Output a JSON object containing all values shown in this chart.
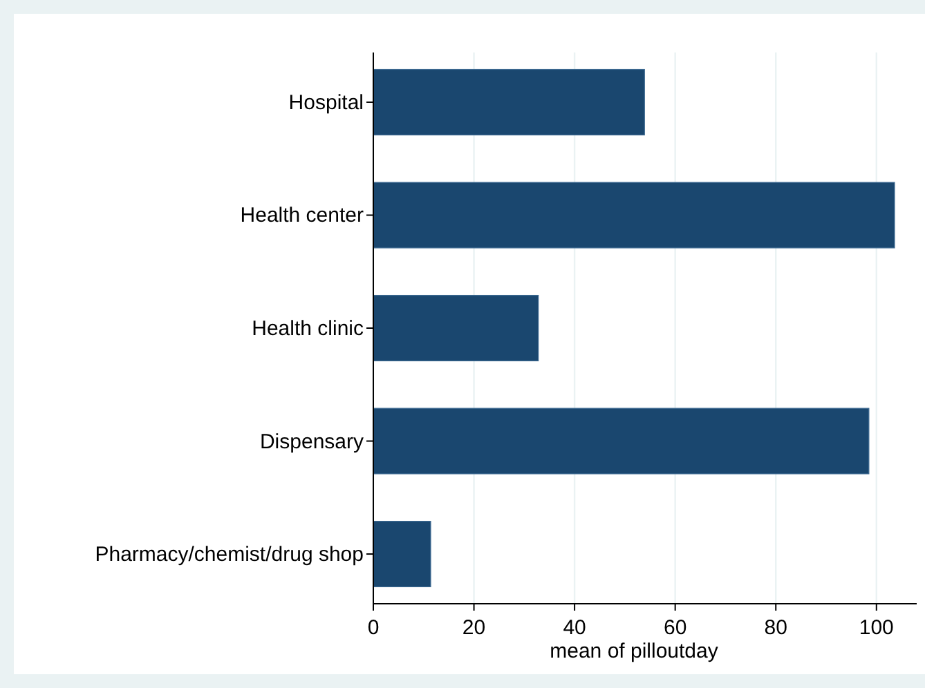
{
  "chart_data": {
    "type": "bar",
    "orientation": "horizontal",
    "xlabel": "mean of pilloutday",
    "categories": [
      "Hospital",
      "Health center",
      "Health clinic",
      "Dispensary",
      "Pharmacy/chemist/drug shop"
    ],
    "values": [
      53.9,
      103.6,
      32.8,
      98.5,
      11.4
    ],
    "color": "#1a476f",
    "xlim": [
      0,
      108
    ],
    "xticks": [
      0,
      20,
      40,
      60,
      80,
      100
    ],
    "grid": "x"
  }
}
